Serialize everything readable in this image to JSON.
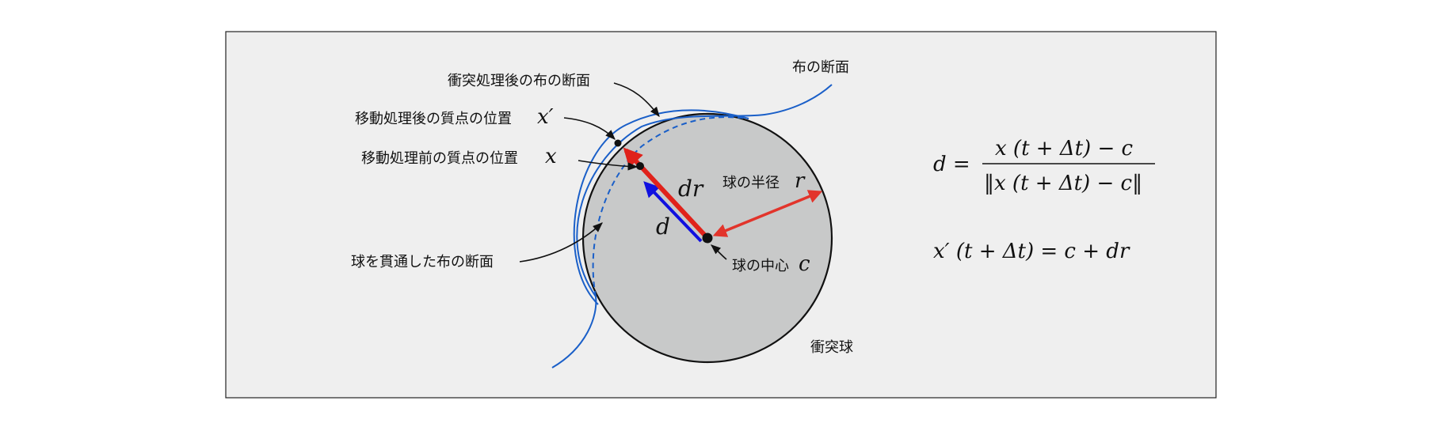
{
  "labels": {
    "cloth_after": "衝突処理後の布の断面",
    "cloth": "布の断面",
    "pos_after_text": "移動処理後の質点の位置",
    "pos_after_sym": "x′",
    "pos_before_text": "移動処理前の質点の位置",
    "pos_before_sym": "x",
    "penetrated": "球を貫通した布の断面",
    "radius_text": "球の半径",
    "radius_sym": "r",
    "center_text": "球の中心",
    "center_sym": "c",
    "sphere": "衝突球",
    "dr": "dr",
    "d": "d"
  },
  "equations": {
    "eq1_lhs": "d =",
    "eq1_num": "x (t + Δt) − c",
    "eq1_den": "‖x (t + Δt) − c‖",
    "eq2": "x′ (t + Δt) = c + dr"
  },
  "colors": {
    "panel_bg": "#efefef",
    "sphere_fill": "#c8c9c9",
    "cloth_blue": "#1a5fc8",
    "arrow_red": "#e0221b",
    "arrow_blue": "#1010e0",
    "radius_red": "#e2342b"
  }
}
